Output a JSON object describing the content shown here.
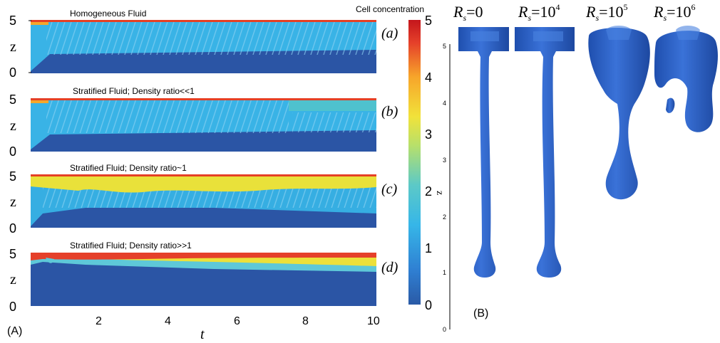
{
  "panel_a": {
    "label": "(A)",
    "xlabel": "t",
    "ylabel": "z",
    "x_ticks": [
      "2",
      "4",
      "6",
      "8",
      "10"
    ],
    "y_ticks": [
      "0",
      "5"
    ],
    "subplots": [
      {
        "title": "Homogeneous Fluid",
        "tag": "(a)"
      },
      {
        "title": "Stratified Fluid; Density ratio<<1",
        "tag": "(b)"
      },
      {
        "title": "Stratified Fluid; Density ratio~1",
        "tag": "(c)"
      },
      {
        "title": "Stratified Fluid; Density ratio>>1",
        "tag": "(d)"
      }
    ]
  },
  "colorbar": {
    "label": "Cell concentration",
    "ticks": [
      "0",
      "1",
      "2",
      "3",
      "4",
      "5"
    ],
    "colors": [
      "#2a5aa6",
      "#2f7fd2",
      "#36b6e8",
      "#5cc9c7",
      "#b8e06a",
      "#f1e23a",
      "#f7a52a",
      "#e5402a",
      "#c4161c"
    ]
  },
  "panel_b": {
    "label": "(B)",
    "zlabel": "z",
    "z_ticks": [
      "0",
      "1",
      "2",
      "3",
      "4",
      "5"
    ],
    "columns": [
      {
        "rs_base": "R",
        "rs_sub": "s",
        "eq": "=",
        "value": "0",
        "exp": ""
      },
      {
        "rs_base": "R",
        "rs_sub": "s",
        "eq": "=",
        "value": "10",
        "exp": "4"
      },
      {
        "rs_base": "R",
        "rs_sub": "s",
        "eq": "=",
        "value": "10",
        "exp": "5"
      },
      {
        "rs_base": "R",
        "rs_sub": "s",
        "eq": "=",
        "value": "10",
        "exp": "6"
      }
    ],
    "plume_color": "#2f64c8"
  }
}
